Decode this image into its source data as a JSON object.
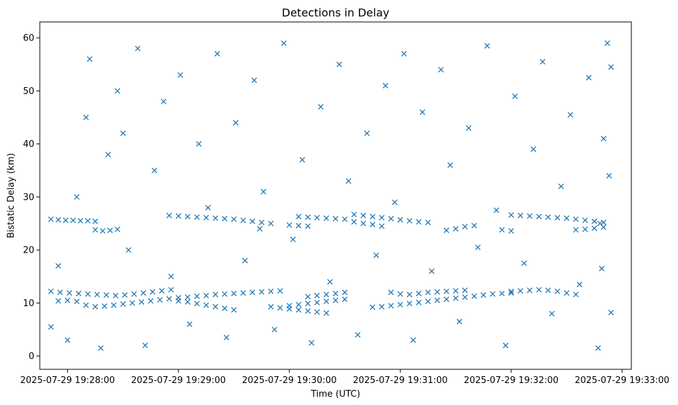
{
  "chart_data": {
    "type": "scatter",
    "title": "Detections in Delay",
    "xlabel": "Time (UTC)",
    "ylabel": "Bistatic Delay (km)",
    "x_tick_labels": [
      "2025-07-29 19:28:00",
      "2025-07-29 19:29:00",
      "2025-07-29 19:30:00",
      "2025-07-29 19:31:00",
      "2025-07-29 19:32:00",
      "2025-07-29 19:33:00"
    ],
    "y_ticks": [
      0,
      10,
      20,
      30,
      40,
      50,
      60
    ],
    "xlim": [
      "2025-07-29 19:27:45",
      "2025-07-29 19:33:05"
    ],
    "ylim": [
      -2.5,
      63
    ],
    "grid": false,
    "marker": "x",
    "color": "#1f77b4",
    "series": [
      {
        "points": [
          [
            "19:27:51",
            25.8
          ],
          [
            "19:27:55",
            25.7
          ],
          [
            "19:27:59",
            25.6
          ],
          [
            "19:28:03",
            25.6
          ],
          [
            "19:28:07",
            25.5
          ],
          [
            "19:28:11",
            25.5
          ],
          [
            "19:28:15",
            25.4
          ],
          [
            "19:27:51",
            12.2
          ],
          [
            "19:27:56",
            12.0
          ],
          [
            "19:28:01",
            11.9
          ],
          [
            "19:28:06",
            11.8
          ],
          [
            "19:28:11",
            11.7
          ],
          [
            "19:28:16",
            11.6
          ],
          [
            "19:28:21",
            11.5
          ],
          [
            "19:28:26",
            11.4
          ],
          [
            "19:28:31",
            11.5
          ],
          [
            "19:28:36",
            11.7
          ],
          [
            "19:28:41",
            11.9
          ],
          [
            "19:28:46",
            12.1
          ],
          [
            "19:28:51",
            12.3
          ],
          [
            "19:28:56",
            12.5
          ],
          [
            "19:27:55",
            10.4
          ],
          [
            "19:28:00",
            10.5
          ],
          [
            "19:28:05",
            10.3
          ],
          [
            "19:28:10",
            9.6
          ],
          [
            "19:28:15",
            9.3
          ],
          [
            "19:28:20",
            9.4
          ],
          [
            "19:28:25",
            9.6
          ],
          [
            "19:28:30",
            9.8
          ],
          [
            "19:28:35",
            10.0
          ],
          [
            "19:28:40",
            10.2
          ],
          [
            "19:28:45",
            10.4
          ],
          [
            "19:28:50",
            10.6
          ],
          [
            "19:28:55",
            10.8
          ],
          [
            "19:28:15",
            23.8
          ],
          [
            "19:28:19",
            23.6
          ],
          [
            "19:28:23",
            23.7
          ],
          [
            "19:28:27",
            23.9
          ],
          [
            "19:28:55",
            26.5
          ],
          [
            "19:29:00",
            26.4
          ],
          [
            "19:29:05",
            26.3
          ],
          [
            "19:29:10",
            26.2
          ],
          [
            "19:29:15",
            26.1
          ],
          [
            "19:29:20",
            26.0
          ],
          [
            "19:29:25",
            25.9
          ],
          [
            "19:29:30",
            25.8
          ],
          [
            "19:29:35",
            25.6
          ],
          [
            "19:29:40",
            25.4
          ],
          [
            "19:29:45",
            25.2
          ],
          [
            "19:29:50",
            25.0
          ],
          [
            "19:29:00",
            11.0
          ],
          [
            "19:29:05",
            11.1
          ],
          [
            "19:29:10",
            11.3
          ],
          [
            "19:29:15",
            11.4
          ],
          [
            "19:29:20",
            11.6
          ],
          [
            "19:29:25",
            11.7
          ],
          [
            "19:29:30",
            11.8
          ],
          [
            "19:29:35",
            11.9
          ],
          [
            "19:29:40",
            12.0
          ],
          [
            "19:29:45",
            12.1
          ],
          [
            "19:29:50",
            12.2
          ],
          [
            "19:29:55",
            12.3
          ],
          [
            "19:29:00",
            10.4
          ],
          [
            "19:29:05",
            10.2
          ],
          [
            "19:29:10",
            9.9
          ],
          [
            "19:29:15",
            9.6
          ],
          [
            "19:29:20",
            9.3
          ],
          [
            "19:29:25",
            9.0
          ],
          [
            "19:29:30",
            8.7
          ],
          [
            "19:29:50",
            9.3
          ],
          [
            "19:29:55",
            9.1
          ],
          [
            "19:30:00",
            8.9
          ],
          [
            "19:30:05",
            8.7
          ],
          [
            "19:30:10",
            8.5
          ],
          [
            "19:30:15",
            8.3
          ],
          [
            "19:30:20",
            8.1
          ],
          [
            "19:30:00",
            24.7
          ],
          [
            "19:30:05",
            24.6
          ],
          [
            "19:30:10",
            24.5
          ],
          [
            "19:30:05",
            26.3
          ],
          [
            "19:30:10",
            26.2
          ],
          [
            "19:30:15",
            26.1
          ],
          [
            "19:30:20",
            26.0
          ],
          [
            "19:30:25",
            25.9
          ],
          [
            "19:30:30",
            25.8
          ],
          [
            "19:30:00",
            9.5
          ],
          [
            "19:30:05",
            9.7
          ],
          [
            "19:30:10",
            9.9
          ],
          [
            "19:30:15",
            10.1
          ],
          [
            "19:30:20",
            10.3
          ],
          [
            "19:30:25",
            10.5
          ],
          [
            "19:30:30",
            10.7
          ],
          [
            "19:30:10",
            11.2
          ],
          [
            "19:30:15",
            11.4
          ],
          [
            "19:30:20",
            11.6
          ],
          [
            "19:30:25",
            11.8
          ],
          [
            "19:30:30",
            12.0
          ],
          [
            "19:30:35",
            26.7
          ],
          [
            "19:30:40",
            26.5
          ],
          [
            "19:30:45",
            26.3
          ],
          [
            "19:30:50",
            26.1
          ],
          [
            "19:30:55",
            25.9
          ],
          [
            "19:31:00",
            25.7
          ],
          [
            "19:31:05",
            25.5
          ],
          [
            "19:31:10",
            25.3
          ],
          [
            "19:31:15",
            25.2
          ],
          [
            "19:30:35",
            25.3
          ],
          [
            "19:30:40",
            25.0
          ],
          [
            "19:30:45",
            24.8
          ],
          [
            "19:30:50",
            24.5
          ],
          [
            "19:30:45",
            9.2
          ],
          [
            "19:30:50",
            9.3
          ],
          [
            "19:30:55",
            9.5
          ],
          [
            "19:31:00",
            9.7
          ],
          [
            "19:31:05",
            9.9
          ],
          [
            "19:31:10",
            10.1
          ],
          [
            "19:31:15",
            10.3
          ],
          [
            "19:31:20",
            10.5
          ],
          [
            "19:31:25",
            10.7
          ],
          [
            "19:31:30",
            10.9
          ],
          [
            "19:31:35",
            11.1
          ],
          [
            "19:31:40",
            11.3
          ],
          [
            "19:31:45",
            11.5
          ],
          [
            "19:31:50",
            11.7
          ],
          [
            "19:31:55",
            11.8
          ],
          [
            "19:32:00",
            11.9
          ],
          [
            "19:30:55",
            12.0
          ],
          [
            "19:31:00",
            11.7
          ],
          [
            "19:31:05",
            11.6
          ],
          [
            "19:31:10",
            11.8
          ],
          [
            "19:31:15",
            12.0
          ],
          [
            "19:31:20",
            12.1
          ],
          [
            "19:31:25",
            12.2
          ],
          [
            "19:31:30",
            12.3
          ],
          [
            "19:31:35",
            12.4
          ],
          [
            "19:31:25",
            23.7
          ],
          [
            "19:31:30",
            24.0
          ],
          [
            "19:31:35",
            24.4
          ],
          [
            "19:31:40",
            24.6
          ],
          [
            "19:31:55",
            23.8
          ],
          [
            "19:32:00",
            23.6
          ],
          [
            "19:32:00",
            26.6
          ],
          [
            "19:32:05",
            26.5
          ],
          [
            "19:32:10",
            26.4
          ],
          [
            "19:32:15",
            26.3
          ],
          [
            "19:32:20",
            26.2
          ],
          [
            "19:32:25",
            26.1
          ],
          [
            "19:32:30",
            26.0
          ],
          [
            "19:32:35",
            25.8
          ],
          [
            "19:32:40",
            25.6
          ],
          [
            "19:32:45",
            25.4
          ],
          [
            "19:32:50",
            25.2
          ],
          [
            "19:32:00",
            12.2
          ],
          [
            "19:32:05",
            12.3
          ],
          [
            "19:32:10",
            12.4
          ],
          [
            "19:32:15",
            12.5
          ],
          [
            "19:32:20",
            12.4
          ],
          [
            "19:32:25",
            12.2
          ],
          [
            "19:32:30",
            11.9
          ],
          [
            "19:32:35",
            11.6
          ],
          [
            "19:32:35",
            23.8
          ],
          [
            "19:32:40",
            23.9
          ],
          [
            "19:32:45",
            24.1
          ],
          [
            "19:32:50",
            24.3
          ],
          [
            "19:27:51",
            5.5
          ],
          [
            "19:27:55",
            17.0
          ],
          [
            "19:28:00",
            3.0
          ],
          [
            "19:28:05",
            30.0
          ],
          [
            "19:28:10",
            45.0
          ],
          [
            "19:28:12",
            56.0
          ],
          [
            "19:28:18",
            1.5
          ],
          [
            "19:28:22",
            38.0
          ],
          [
            "19:28:27",
            50.0
          ],
          [
            "19:28:33",
            20.0
          ],
          [
            "19:28:38",
            58.0
          ],
          [
            "19:28:42",
            2.0
          ],
          [
            "19:28:47",
            35.0
          ],
          [
            "19:28:52",
            48.0
          ],
          [
            "19:28:56",
            15.0
          ],
          [
            "19:29:01",
            53.0
          ],
          [
            "19:29:06",
            6.0
          ],
          [
            "19:29:11",
            40.0
          ],
          [
            "19:29:16",
            28.0
          ],
          [
            "19:29:21",
            57.0
          ],
          [
            "19:29:26",
            3.5
          ],
          [
            "19:29:31",
            44.0
          ],
          [
            "19:29:36",
            18.0
          ],
          [
            "19:29:41",
            52.0
          ],
          [
            "19:29:46",
            31.0
          ],
          [
            "19:29:52",
            5.0
          ],
          [
            "19:29:57",
            59.0
          ],
          [
            "19:30:02",
            22.0
          ],
          [
            "19:30:07",
            37.0
          ],
          [
            "19:30:12",
            2.5
          ],
          [
            "19:30:17",
            47.0
          ],
          [
            "19:30:22",
            14.0
          ],
          [
            "19:30:27",
            55.0
          ],
          [
            "19:30:32",
            33.0
          ],
          [
            "19:30:37",
            4.0
          ],
          [
            "19:30:42",
            42.0
          ],
          [
            "19:30:47",
            19.0
          ],
          [
            "19:30:52",
            51.0
          ],
          [
            "19:30:57",
            29.0
          ],
          [
            "19:31:02",
            57.0
          ],
          [
            "19:31:07",
            3.0
          ],
          [
            "19:31:12",
            46.0
          ],
          [
            "19:31:17",
            16.0
          ],
          [
            "19:31:22",
            54.0
          ],
          [
            "19:31:27",
            36.0
          ],
          [
            "19:31:32",
            6.5
          ],
          [
            "19:31:37",
            43.0
          ],
          [
            "19:31:42",
            20.5
          ],
          [
            "19:31:47",
            58.5
          ],
          [
            "19:31:52",
            27.5
          ],
          [
            "19:31:57",
            2.0
          ],
          [
            "19:32:02",
            49.0
          ],
          [
            "19:32:07",
            17.5
          ],
          [
            "19:32:12",
            39.0
          ],
          [
            "19:32:17",
            55.5
          ],
          [
            "19:32:22",
            8.0
          ],
          [
            "19:32:27",
            32.0
          ],
          [
            "19:32:32",
            45.5
          ],
          [
            "19:32:37",
            13.5
          ],
          [
            "19:32:42",
            52.5
          ],
          [
            "19:32:47",
            1.5
          ],
          [
            "19:32:50",
            41.0
          ],
          [
            "19:32:52",
            59.0
          ],
          [
            "19:32:53",
            34.0
          ],
          [
            "19:32:54",
            8.2
          ],
          [
            "19:32:54",
            54.5
          ],
          [
            "19:32:48",
            25.0
          ],
          [
            "19:32:49",
            16.5
          ],
          [
            "19:28:30",
            42.0
          ],
          [
            "19:29:44",
            24.0
          ]
        ]
      }
    ]
  }
}
